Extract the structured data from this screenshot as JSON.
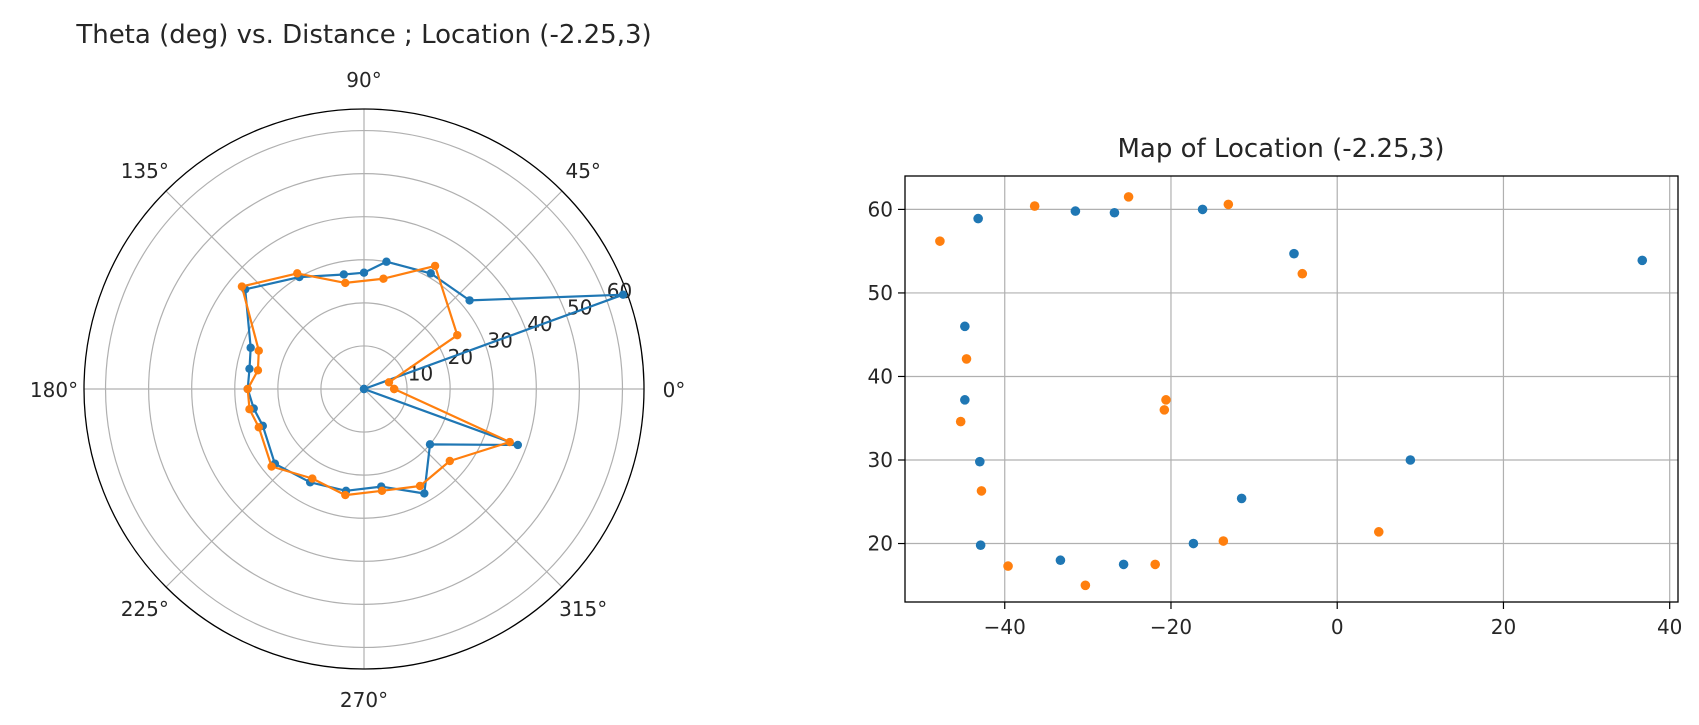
{
  "chart_data": [
    {
      "type": "polar-line",
      "title": "Theta (deg) vs. Distance ; Location (-2.25,3)",
      "r_lim": [
        0,
        65
      ],
      "r_ticks": [
        10,
        20,
        30,
        40,
        50,
        60
      ],
      "theta_ticks": [
        "0°",
        "45°",
        "90°",
        "135°",
        "180°",
        "225°",
        "270°",
        "315°"
      ],
      "grid": true,
      "series": [
        {
          "color": "#1f77b4",
          "theta_deg": [
            0,
            20,
            40,
            60,
            80,
            90,
            100,
            120,
            140,
            160,
            170,
            180,
            190,
            200,
            220,
            240,
            260,
            280,
            300,
            320,
            340,
            360
          ],
          "r": [
            0,
            64,
            32,
            31,
            30,
            27,
            27,
            30,
            36,
            28,
            27,
            27,
            26,
            25,
            27,
            25,
            24,
            23,
            28,
            20,
            38,
            0
          ]
        },
        {
          "color": "#ff7f0e",
          "theta_deg": [
            0,
            15,
            30,
            60,
            80,
            100,
            120,
            140,
            160,
            170,
            180,
            190,
            200,
            220,
            240,
            260,
            280,
            300,
            320,
            340,
            360
          ],
          "r": [
            7,
            6,
            25,
            33,
            26,
            25,
            31,
            37,
            26,
            25,
            27,
            27,
            26,
            28,
            24,
            25,
            24,
            26,
            26,
            36,
            7
          ]
        }
      ]
    },
    {
      "type": "scatter",
      "title": "Map of Location (-2.25,3)",
      "xlim": [
        -52,
        41
      ],
      "ylim": [
        13,
        64
      ],
      "x_ticks": [
        -40,
        -20,
        0,
        20,
        40
      ],
      "x_tick_labels": [
        "−40",
        "−20",
        "0",
        "20",
        "40"
      ],
      "y_ticks": [
        20,
        30,
        40,
        50,
        60
      ],
      "grid": true,
      "series": [
        {
          "color": "#1f77b4",
          "points": [
            [
              -43.2,
              58.9
            ],
            [
              -31.5,
              59.8
            ],
            [
              -26.8,
              59.6
            ],
            [
              -16.2,
              60.0
            ],
            [
              -5.2,
              54.7
            ],
            [
              36.7,
              53.9
            ],
            [
              -44.8,
              46.0
            ],
            [
              -44.8,
              37.2
            ],
            [
              -43.0,
              29.8
            ],
            [
              8.8,
              30.0
            ],
            [
              -11.5,
              25.4
            ],
            [
              -42.9,
              19.8
            ],
            [
              -33.3,
              18.0
            ],
            [
              -25.7,
              17.5
            ],
            [
              -17.3,
              20.0
            ]
          ]
        },
        {
          "color": "#ff7f0e",
          "points": [
            [
              -47.8,
              56.2
            ],
            [
              -36.4,
              60.4
            ],
            [
              -25.1,
              61.5
            ],
            [
              -13.1,
              60.6
            ],
            [
              -4.2,
              52.3
            ],
            [
              -44.6,
              42.1
            ],
            [
              -20.6,
              37.2
            ],
            [
              -20.8,
              36.0
            ],
            [
              -45.3,
              34.6
            ],
            [
              -42.8,
              26.3
            ],
            [
              5.0,
              21.4
            ],
            [
              -13.7,
              20.3
            ],
            [
              -39.6,
              17.3
            ],
            [
              -21.9,
              17.5
            ],
            [
              -30.3,
              15.0
            ]
          ]
        }
      ]
    }
  ]
}
